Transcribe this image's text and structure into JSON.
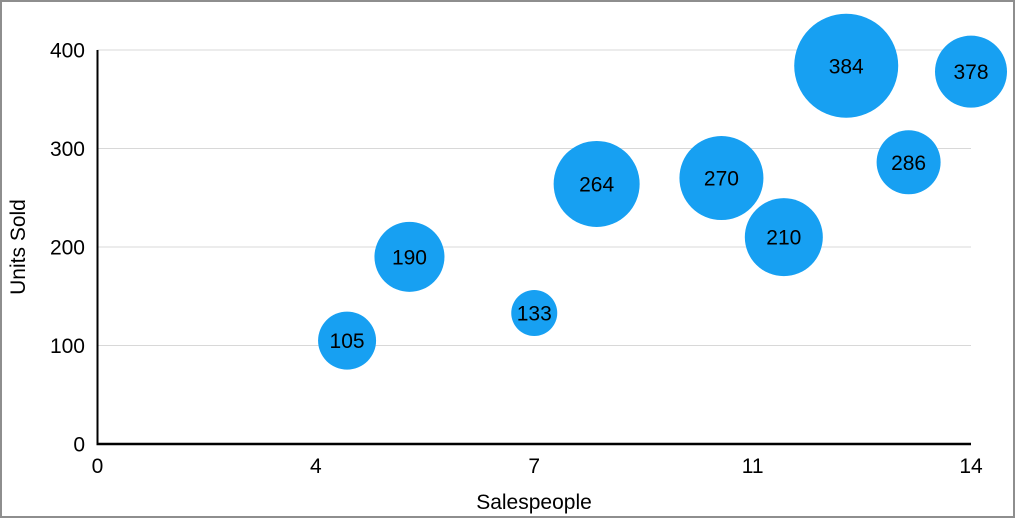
{
  "figure": {
    "background": "#ffffff",
    "border_color": "#8e8e8e"
  },
  "chart_data": {
    "type": "bubble",
    "title": "",
    "xlabel": "Salespeople",
    "ylabel": "Units Sold",
    "xlim": [
      0,
      14
    ],
    "ylim": [
      0,
      400
    ],
    "grid": {
      "horizontal": true,
      "vertical": false,
      "color": "#d8d8d8"
    },
    "axis_color": "#000000",
    "text_color": "#000000",
    "x_ticks": [
      {
        "value": 0,
        "label": "0"
      },
      {
        "value": 3.5,
        "label": "4"
      },
      {
        "value": 7,
        "label": "7"
      },
      {
        "value": 10.5,
        "label": "11"
      },
      {
        "value": 14,
        "label": "14"
      }
    ],
    "y_ticks": [
      {
        "value": 0,
        "label": "0"
      },
      {
        "value": 100,
        "label": "100"
      },
      {
        "value": 200,
        "label": "200"
      },
      {
        "value": 300,
        "label": "300"
      },
      {
        "value": 400,
        "label": "400"
      }
    ],
    "series": [
      {
        "name": "bubbles",
        "color": "#17a0f2",
        "label_color": "#000000",
        "points": [
          {
            "x": 4,
            "y": 105,
            "label": "105",
            "radius_px": 29
          },
          {
            "x": 5,
            "y": 190,
            "label": "190",
            "radius_px": 35
          },
          {
            "x": 7,
            "y": 133,
            "label": "133",
            "radius_px": 23
          },
          {
            "x": 8,
            "y": 264,
            "label": "264",
            "radius_px": 43
          },
          {
            "x": 10,
            "y": 270,
            "label": "270",
            "radius_px": 42
          },
          {
            "x": 11,
            "y": 210,
            "label": "210",
            "radius_px": 39
          },
          {
            "x": 12,
            "y": 384,
            "label": "384",
            "radius_px": 52
          },
          {
            "x": 13,
            "y": 286,
            "label": "286",
            "radius_px": 32
          },
          {
            "x": 14,
            "y": 378,
            "label": "378",
            "radius_px": 36
          }
        ]
      }
    ]
  }
}
